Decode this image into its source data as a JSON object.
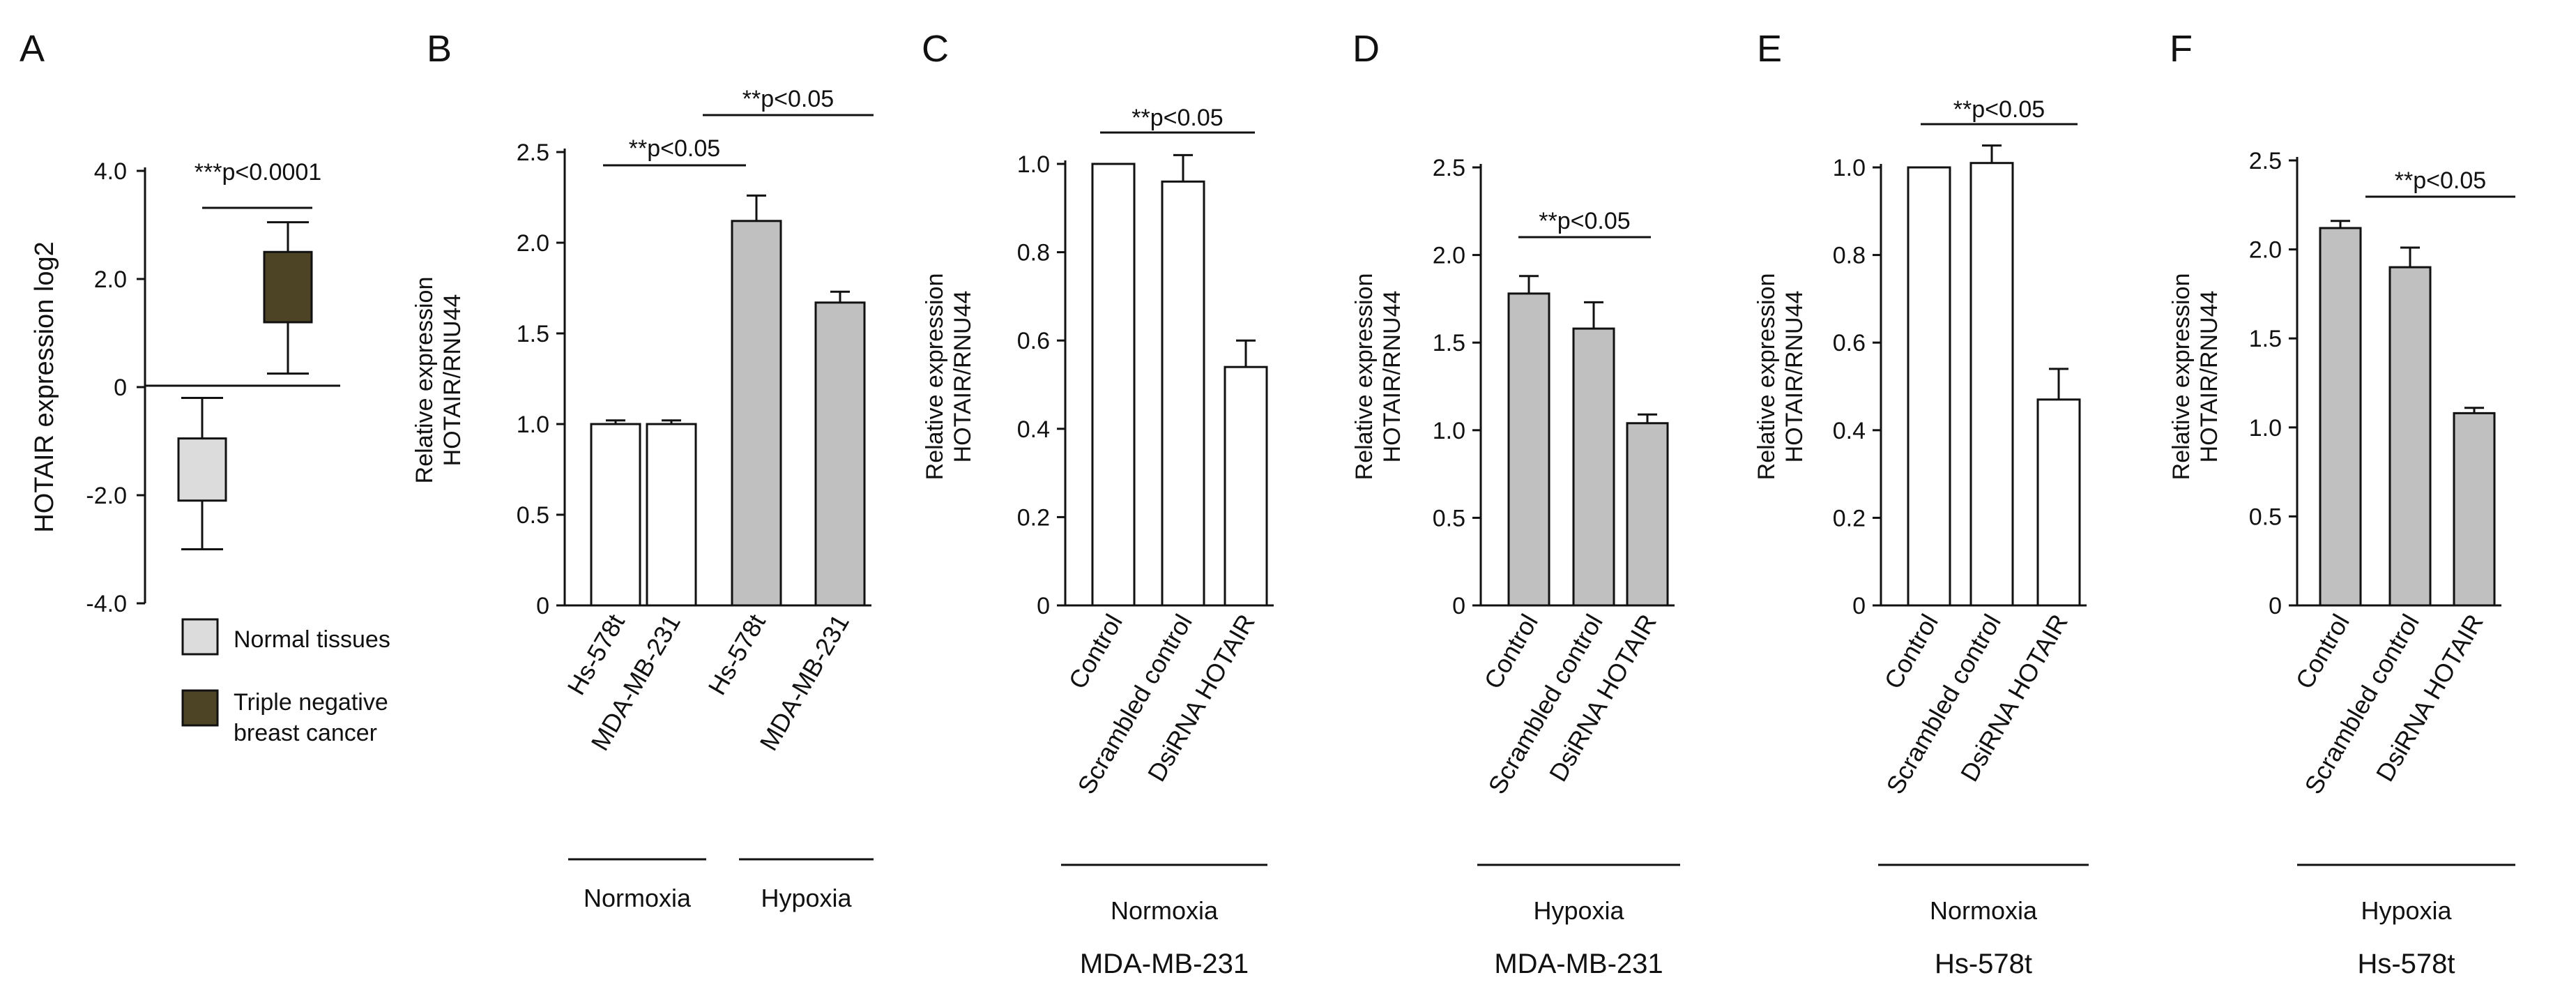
{
  "colors": {
    "white_bar": "#ffffff",
    "gray_bar": "#c0c0c0",
    "normal_box": "#dcdcdc",
    "tnbc_box": "#4d4426",
    "ink": "#111111"
  },
  "chart_data": [
    {
      "panel": "A",
      "type": "box",
      "ylabel": "HOTAIR expression log2",
      "ylim": [
        -4.0,
        4.0
      ],
      "yticks": [
        "4.0",
        "2.0",
        "0",
        "-2.0",
        "-4.0"
      ],
      "ytick_values": [
        4.0,
        2.0,
        0,
        -2.0,
        -4.0
      ],
      "significance": "***p<0.0001",
      "series": [
        {
          "name": "Normal tissues",
          "min": -3.0,
          "q1": -2.1,
          "q3": -0.95,
          "max": -0.2,
          "color": "#dcdcdc"
        },
        {
          "name": "Triple negative breast cancer",
          "min": 0.25,
          "q1": 1.2,
          "q3": 2.5,
          "max": 3.05,
          "color": "#4d4426"
        }
      ],
      "legend": [
        "Normal tissues",
        "Triple negative",
        "breast cancer"
      ]
    },
    {
      "panel": "B",
      "type": "bar",
      "ylabel": [
        "Relative expression",
        "HOTAIR/RNU44"
      ],
      "ylim": [
        0,
        2.5
      ],
      "yticks": [
        "2.5",
        "2.0",
        "1.5",
        "1.0",
        "0.5",
        "0"
      ],
      "ytick_values": [
        2.5,
        2.0,
        1.5,
        1.0,
        0.5,
        0
      ],
      "categories": [
        "Hs-578t",
        "MDA-MB-231",
        "Hs-578t",
        "MDA-MB-231"
      ],
      "values": [
        1.0,
        1.0,
        2.12,
        1.67
      ],
      "errors": [
        0.02,
        0.02,
        0.14,
        0.06
      ],
      "fills": [
        "white",
        "white",
        "gray",
        "gray"
      ],
      "significance": [
        "**p<0.05",
        "**p<0.05"
      ],
      "groups": [
        "Normoxia",
        "Hypoxia"
      ]
    },
    {
      "panel": "C",
      "type": "bar",
      "ylabel": [
        "Relative expression",
        "HOTAIR/RNU44"
      ],
      "ylim": [
        0,
        1.0
      ],
      "yticks": [
        "1.0",
        "0.8",
        "0.6",
        "0.4",
        "0.2",
        "0"
      ],
      "ytick_values": [
        1.0,
        0.8,
        0.6,
        0.4,
        0.2,
        0
      ],
      "categories": [
        "Control",
        "Scrambled control",
        "DsiRNA HOTAIR"
      ],
      "values": [
        1.0,
        0.96,
        0.54
      ],
      "errors": [
        0.0,
        0.06,
        0.06
      ],
      "fills": [
        "white",
        "white",
        "white"
      ],
      "significance": [
        "**p<0.05"
      ],
      "condition": "Normoxia",
      "cell_line": "MDA-MB-231"
    },
    {
      "panel": "D",
      "type": "bar",
      "ylabel": [
        "Relative expression",
        "HOTAIR/RNU44"
      ],
      "ylim": [
        0,
        2.5
      ],
      "yticks": [
        "2.5",
        "2.0",
        "1.5",
        "1.0",
        "0.5",
        "0"
      ],
      "ytick_values": [
        2.5,
        2.0,
        1.5,
        1.0,
        0.5,
        0
      ],
      "categories": [
        "Control",
        "Scrambled control",
        "DsiRNA HOTAIR"
      ],
      "values": [
        1.78,
        1.58,
        1.04
      ],
      "errors": [
        0.1,
        0.15,
        0.05
      ],
      "fills": [
        "gray",
        "gray",
        "gray"
      ],
      "significance": [
        "**p<0.05"
      ],
      "condition": "Hypoxia",
      "cell_line": "MDA-MB-231"
    },
    {
      "panel": "E",
      "type": "bar",
      "ylabel": [
        "Relative expression",
        "HOTAIR/RNU44"
      ],
      "ylim": [
        0,
        1.0
      ],
      "yticks": [
        "1.0",
        "0.8",
        "0.6",
        "0.4",
        "0.2",
        "0"
      ],
      "ytick_values": [
        1.0,
        0.8,
        0.6,
        0.4,
        0.2,
        0
      ],
      "categories": [
        "Control",
        "Scrambled control",
        "DsiRNA HOTAIR"
      ],
      "values": [
        1.0,
        1.01,
        0.47
      ],
      "errors": [
        0.0,
        0.04,
        0.07
      ],
      "fills": [
        "white",
        "white",
        "white"
      ],
      "significance": [
        "**p<0.05"
      ],
      "condition": "Normoxia",
      "cell_line": "Hs-578t"
    },
    {
      "panel": "F",
      "type": "bar",
      "ylabel": [
        "Relative expression",
        "HOTAIR/RNU44"
      ],
      "ylim": [
        0,
        2.5
      ],
      "yticks": [
        "2.5",
        "2.0",
        "1.5",
        "1.0",
        "0.5",
        "0"
      ],
      "ytick_values": [
        2.5,
        2.0,
        1.5,
        1.0,
        0.5,
        0
      ],
      "categories": [
        "Control",
        "Scrambled control",
        "DsiRNA HOTAIR"
      ],
      "values": [
        2.12,
        1.9,
        1.08
      ],
      "errors": [
        0.04,
        0.11,
        0.03
      ],
      "fills": [
        "gray",
        "gray",
        "gray"
      ],
      "significance": [
        "**p<0.05"
      ],
      "condition": "Hypoxia",
      "cell_line": "Hs-578t"
    }
  ]
}
